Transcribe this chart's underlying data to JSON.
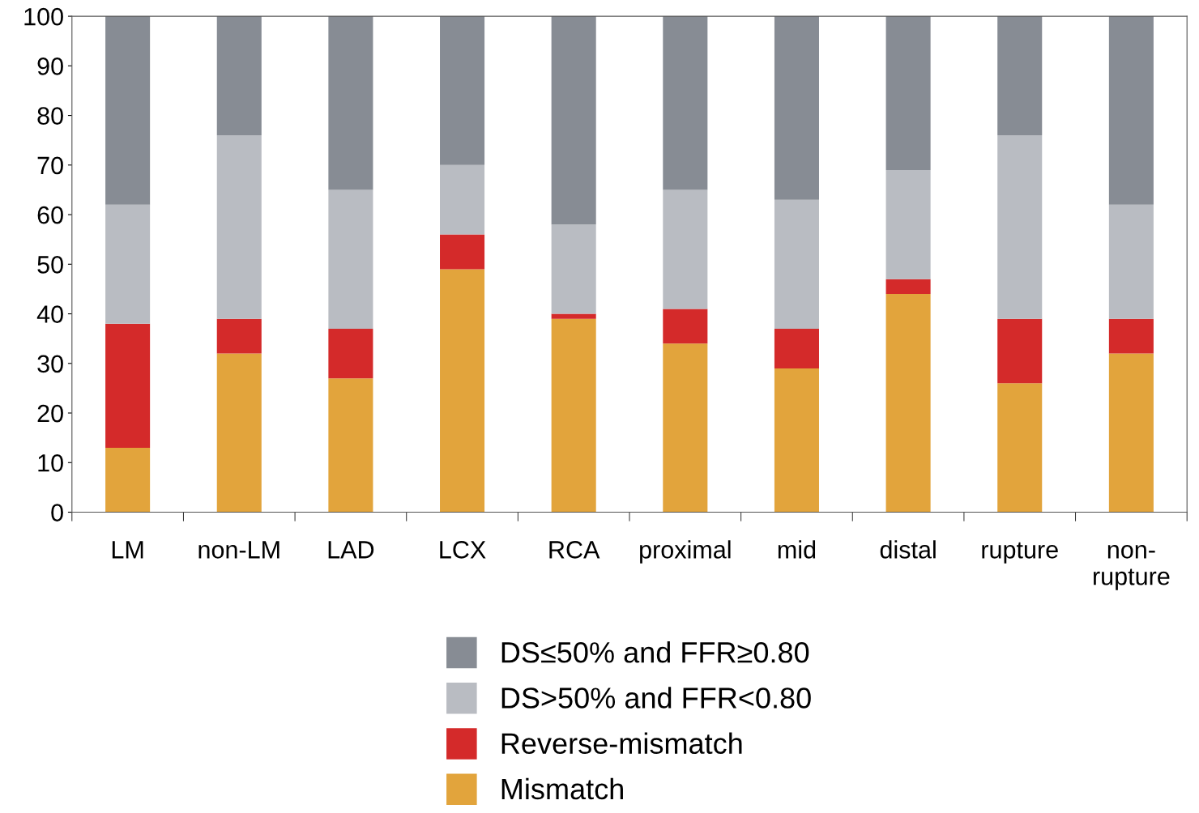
{
  "chart_data": {
    "type": "bar",
    "stacked": true,
    "categories": [
      "LM",
      "non-LM",
      "LAD",
      "LCX",
      "RCA",
      "proximal",
      "mid",
      "distal",
      "rupture",
      "non-\nrupture"
    ],
    "series": [
      {
        "name": "Mismatch",
        "color": "#e2a43c",
        "values": [
          13,
          32,
          27,
          49,
          39,
          34,
          29,
          44,
          26,
          32
        ]
      },
      {
        "name": "Reverse-mismatch",
        "color": "#d42a2a",
        "values": [
          25,
          7,
          10,
          7,
          1,
          7,
          8,
          3,
          13,
          7
        ]
      },
      {
        "name": "DS>50% and FFR<0.80",
        "color": "#b9bcc2",
        "values": [
          24,
          37,
          28,
          14,
          18,
          24,
          26,
          22,
          37,
          23
        ]
      },
      {
        "name": "DS≤50% and FFR≥0.80",
        "color": "#878c94",
        "values": [
          38,
          24,
          35,
          30,
          42,
          35,
          37,
          31,
          24,
          38
        ]
      }
    ],
    "ylim": [
      0,
      100
    ],
    "yticks": [
      0,
      10,
      20,
      30,
      40,
      50,
      60,
      70,
      80,
      90,
      100
    ],
    "grid": false,
    "legend": "bottom"
  }
}
